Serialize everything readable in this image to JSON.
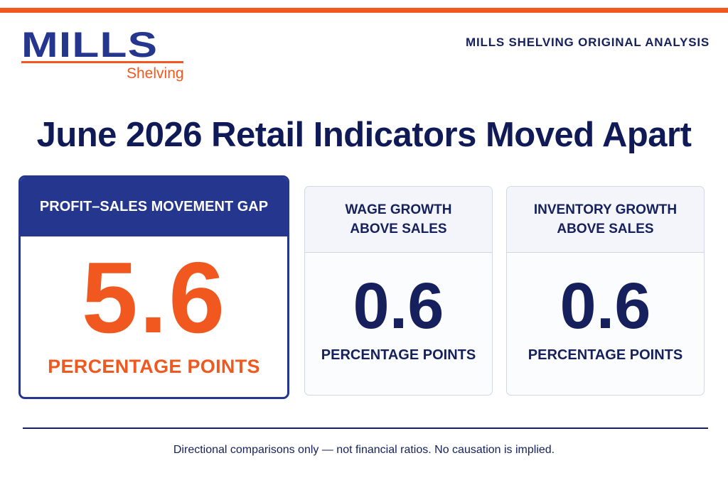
{
  "brand": {
    "logo_word": "MILLS",
    "logo_sub": "Shelving"
  },
  "kicker": "MILLS SHELVING ORIGINAL ANALYSIS",
  "headline": "June 2026 Retail Indicators Moved Apart",
  "cards": [
    {
      "title": "PROFIT–SALES MOVEMENT GAP",
      "value": "5.6",
      "unit": "PERCENTAGE POINTS"
    },
    {
      "title_line1": "WAGE GROWTH",
      "title_line2": "ABOVE SALES",
      "value": "0.6",
      "unit": "PERCENTAGE POINTS"
    },
    {
      "title_line1": "INVENTORY GROWTH",
      "title_line2": "ABOVE SALES",
      "value": "0.6",
      "unit": "PERCENTAGE POINTS"
    }
  ],
  "footnote": "Directional comparisons only — not financial ratios. No causation is implied.",
  "colors": {
    "accent": "#f0581f",
    "navy": "#24368e",
    "text": "#15205c"
  }
}
